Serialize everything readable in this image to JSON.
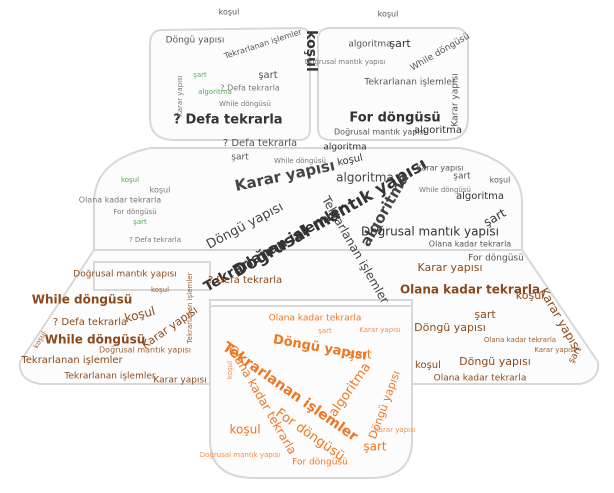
{
  "palette": {
    "dark": "#333333",
    "grey": "#777777",
    "green": "#55aa55",
    "brown": "#8a4a1c",
    "orange": "#ee7722",
    "outline": "#d8d8d8",
    "fill": "#fcfcfc"
  },
  "words": {
    "w01": "koşul",
    "w02": "Döngü yapısı",
    "w03": "Tekrarlanan işlemler",
    "w04": "şart",
    "w05": "While döngüsü",
    "w06": "For döngüsü",
    "w07": "Doğrusal mantık yapısı",
    "w08": "algoritma",
    "w09": "? Defa tekrarla",
    "w10": "Karar yapısı",
    "w11": "Olana kadar tekrarla",
    "w12": "? Defa tekrarla",
    "w13": "For döngüsü",
    "w14": "koşul",
    "w15": "şart",
    "w16": "algoritma",
    "w17": "While döngüsü",
    "w18": "Karar yapısı",
    "w19": "Doğrusal mantık yapısı",
    "w20": "algoritma",
    "w21": "Karar yapısı",
    "w22": "algoritma",
    "w23": "Tekrarlanan işlemler",
    "w24": "Döngü yapısı",
    "w25": "Doğrusal mantık yapısı",
    "w26": "koşul",
    "w27": "algoritma",
    "w28": "şart",
    "w29": "For döngüsü",
    "w30": "Doğrusal mantık yapısı",
    "w31": "Karar yapısı",
    "w32": "koşul",
    "w33": "? Defa tekrarla",
    "w34": "While döngüsü",
    "w35": "Tekrarlanan işlemler",
    "w36": "koşul",
    "w37": "Karar yapısı",
    "w38": "Olana kadar tekrarla",
    "w39": "Karar yapısı",
    "w40": "Döngü yapısı",
    "w41": "Olana kadar tekrarla",
    "w42": "koşul",
    "w43": "Olana kadar tekrarla",
    "w44": "Döngü yapısı",
    "w45": "şart",
    "w46": "Tekrarlanan işlemler",
    "w47": "Döngü yapısı",
    "w48": "algoritma",
    "w49": "Olana kadar tekrarla",
    "w50": "For döngüsü",
    "w51": "koşul",
    "w52": "şart",
    "w53": "Doğrusal mantık yapısı",
    "w54": "? Defa tekrarla",
    "w55": "While döngüsü",
    "w56": "Karar yapısı",
    "w57": "şart",
    "w58": "koşul",
    "w59": "Döngü yapısı",
    "w60": "Doğrusal mantık yapısı",
    "w61": "For döngüsü",
    "w62": "Tekrarlanan işlemler"
  }
}
